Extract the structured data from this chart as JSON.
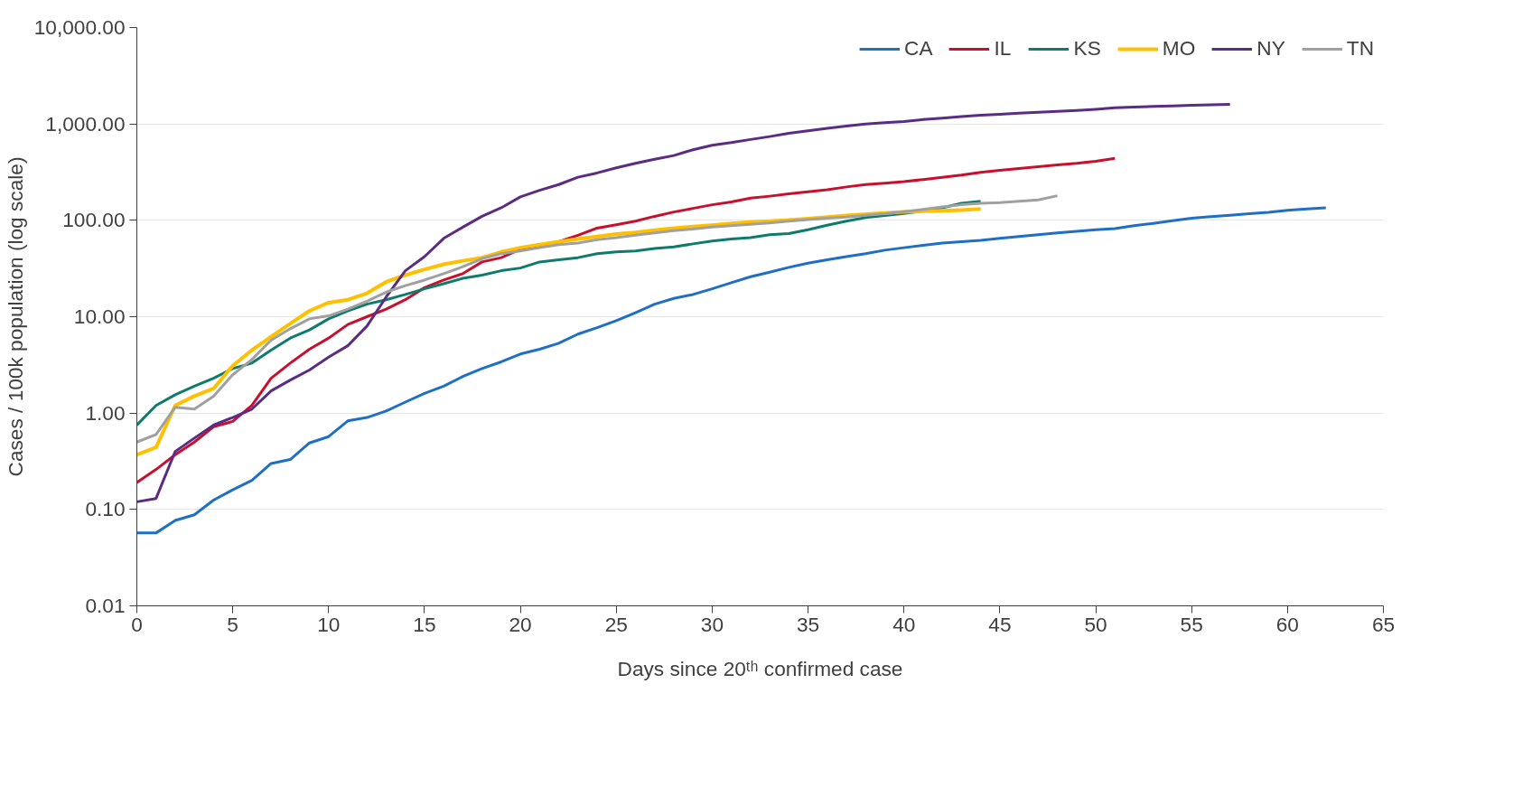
{
  "chart_data": {
    "type": "line",
    "xlabel": "Days since 20ᵗʰ confirmed case",
    "ylabel": "Cases / 100k population (log scale)",
    "log": "y",
    "grid": "y",
    "legend": "top right",
    "line_style": "solid",
    "marker": "none",
    "xlim": [
      0,
      65
    ],
    "xticks": [
      0,
      5,
      10,
      15,
      20,
      25,
      30,
      35,
      40,
      45,
      50,
      55,
      60,
      65
    ],
    "ylim": [
      0.01,
      10000
    ],
    "yticks": [
      {
        "value": 0.01,
        "label": "0.01"
      },
      {
        "value": 0.1,
        "label": "0.10"
      },
      {
        "value": 1,
        "label": "1.00"
      },
      {
        "value": 10,
        "label": "10.00"
      },
      {
        "value": 100,
        "label": "100.00"
      },
      {
        "value": 1000,
        "label": "1,000.00"
      },
      {
        "value": 10000,
        "label": "10,000.00"
      }
    ],
    "series": [
      {
        "name": "CA",
        "color": "#1f6fc6",
        "x": [
          0,
          1,
          2,
          3,
          4,
          5,
          6,
          7,
          8,
          9,
          10,
          11,
          12,
          13,
          14,
          15,
          16,
          17,
          18,
          19,
          20,
          21,
          22,
          23,
          24,
          25,
          26,
          27,
          28,
          29,
          30,
          31,
          32,
          33,
          34,
          35,
          36,
          37,
          38,
          39,
          40,
          41,
          42,
          43,
          44,
          45,
          46,
          47,
          48,
          49,
          50,
          51,
          52,
          53,
          54,
          55,
          56,
          57,
          58,
          59,
          60,
          61,
          62
        ],
        "values": [
          0.057,
          0.057,
          0.077,
          0.088,
          0.125,
          0.16,
          0.2,
          0.3,
          0.33,
          0.49,
          0.57,
          0.83,
          0.9,
          1.05,
          1.3,
          1.6,
          1.9,
          2.4,
          2.9,
          3.4,
          4.1,
          4.6,
          5.3,
          6.6,
          7.7,
          9.1,
          11,
          13.5,
          15.5,
          17,
          19.5,
          22.5,
          26,
          29,
          32.5,
          36,
          39,
          42,
          45,
          49,
          52,
          55,
          58,
          60,
          62,
          65,
          68,
          71,
          74,
          77,
          80,
          82,
          88,
          93,
          99,
          105,
          109,
          113,
          117,
          121,
          127,
          131,
          135
        ]
      },
      {
        "name": "IL",
        "color": "#c8102e",
        "x": [
          0,
          1,
          2,
          3,
          4,
          5,
          6,
          7,
          8,
          9,
          10,
          11,
          12,
          13,
          14,
          15,
          16,
          17,
          18,
          19,
          20,
          21,
          22,
          23,
          24,
          25,
          26,
          27,
          28,
          29,
          30,
          31,
          32,
          33,
          34,
          35,
          36,
          37,
          38,
          39,
          40,
          41,
          42,
          43,
          44,
          45,
          46,
          47,
          48,
          49,
          50,
          51
        ],
        "values": [
          0.19,
          0.26,
          0.37,
          0.5,
          0.72,
          0.82,
          1.2,
          2.3,
          3.3,
          4.6,
          6,
          8.3,
          10,
          12,
          15,
          20,
          24,
          28,
          37,
          41,
          50,
          55,
          60,
          70,
          83,
          90,
          98,
          110,
          122,
          133,
          145,
          155,
          170,
          178,
          188,
          198,
          208,
          222,
          235,
          243,
          252,
          265,
          280,
          295,
          315,
          330,
          345,
          360,
          375,
          390,
          410,
          440
        ]
      },
      {
        "name": "KS",
        "color": "#0f7b6c",
        "x": [
          0,
          1,
          2,
          3,
          4,
          5,
          6,
          7,
          8,
          9,
          10,
          11,
          12,
          13,
          14,
          15,
          16,
          17,
          18,
          19,
          20,
          21,
          22,
          23,
          24,
          25,
          26,
          27,
          28,
          29,
          30,
          31,
          32,
          33,
          34,
          35,
          36,
          37,
          38,
          39,
          40,
          41,
          42,
          43,
          44
        ],
        "values": [
          0.75,
          1.2,
          1.55,
          1.9,
          2.3,
          2.9,
          3.3,
          4.5,
          6,
          7.3,
          9.5,
          11.5,
          13.5,
          15,
          17,
          19.5,
          22,
          25,
          27,
          30,
          32,
          37,
          39,
          41,
          45,
          47,
          48,
          51,
          53,
          57,
          61,
          64,
          66,
          71,
          73,
          80,
          89,
          98,
          107,
          112,
          118,
          125,
          135,
          150,
          158
        ]
      },
      {
        "name": "MO",
        "color": "#ffc000",
        "x": [
          0,
          1,
          2,
          3,
          4,
          5,
          6,
          7,
          8,
          9,
          10,
          11,
          12,
          13,
          14,
          15,
          16,
          17,
          18,
          19,
          20,
          21,
          22,
          23,
          24,
          25,
          26,
          27,
          28,
          29,
          30,
          31,
          32,
          33,
          34,
          35,
          36,
          37,
          38,
          39,
          40,
          41,
          42,
          43,
          44
        ],
        "values": [
          0.37,
          0.44,
          1.2,
          1.5,
          1.8,
          3.1,
          4.5,
          6.2,
          8.5,
          11.5,
          14,
          15,
          17.5,
          23,
          27,
          31,
          35,
          38,
          41,
          47,
          52,
          56,
          60,
          64,
          68,
          72,
          75,
          79,
          83,
          86,
          89,
          93,
          96,
          98,
          101,
          104,
          108,
          112,
          116,
          119,
          122,
          124,
          126,
          128,
          131
        ]
      },
      {
        "name": "NY",
        "color": "#5b2c83",
        "x": [
          0,
          1,
          2,
          3,
          4,
          5,
          6,
          7,
          8,
          9,
          10,
          11,
          12,
          13,
          14,
          15,
          16,
          17,
          18,
          19,
          20,
          21,
          22,
          23,
          24,
          25,
          26,
          27,
          28,
          29,
          30,
          31,
          32,
          33,
          34,
          35,
          36,
          37,
          38,
          39,
          40,
          41,
          42,
          43,
          44,
          45,
          46,
          47,
          48,
          49,
          50,
          51,
          52,
          53,
          54,
          55,
          56,
          57
        ],
        "values": [
          0.12,
          0.13,
          0.4,
          0.55,
          0.75,
          0.9,
          1.1,
          1.7,
          2.2,
          2.8,
          3.8,
          5,
          8,
          16,
          30,
          42,
          65,
          85,
          110,
          135,
          175,
          205,
          235,
          280,
          310,
          350,
          390,
          430,
          470,
          540,
          600,
          640,
          690,
          740,
          800,
          850,
          900,
          950,
          1000,
          1030,
          1060,
          1110,
          1150,
          1190,
          1230,
          1260,
          1290,
          1320,
          1350,
          1380,
          1420,
          1470,
          1500,
          1520,
          1540,
          1560,
          1580,
          1600
        ]
      },
      {
        "name": "TN",
        "color": "#a0a0a0",
        "x": [
          0,
          1,
          2,
          3,
          4,
          5,
          6,
          7,
          8,
          9,
          10,
          11,
          12,
          13,
          14,
          15,
          16,
          17,
          18,
          19,
          20,
          21,
          22,
          23,
          24,
          25,
          26,
          27,
          28,
          29,
          30,
          31,
          32,
          33,
          34,
          35,
          36,
          37,
          38,
          39,
          40,
          41,
          42,
          43,
          44,
          45,
          46,
          47,
          48
        ],
        "values": [
          0.5,
          0.6,
          1.15,
          1.1,
          1.5,
          2.5,
          3.6,
          5.7,
          7.5,
          9.5,
          10.2,
          12,
          14.5,
          18,
          21,
          24,
          28,
          33,
          40,
          45,
          48,
          52,
          56,
          58,
          63,
          66,
          70,
          74,
          78,
          81,
          85,
          88,
          91,
          94,
          98,
          102,
          105,
          108,
          113,
          117,
          123,
          130,
          138,
          145,
          150,
          153,
          158,
          163,
          180
        ]
      }
    ]
  }
}
